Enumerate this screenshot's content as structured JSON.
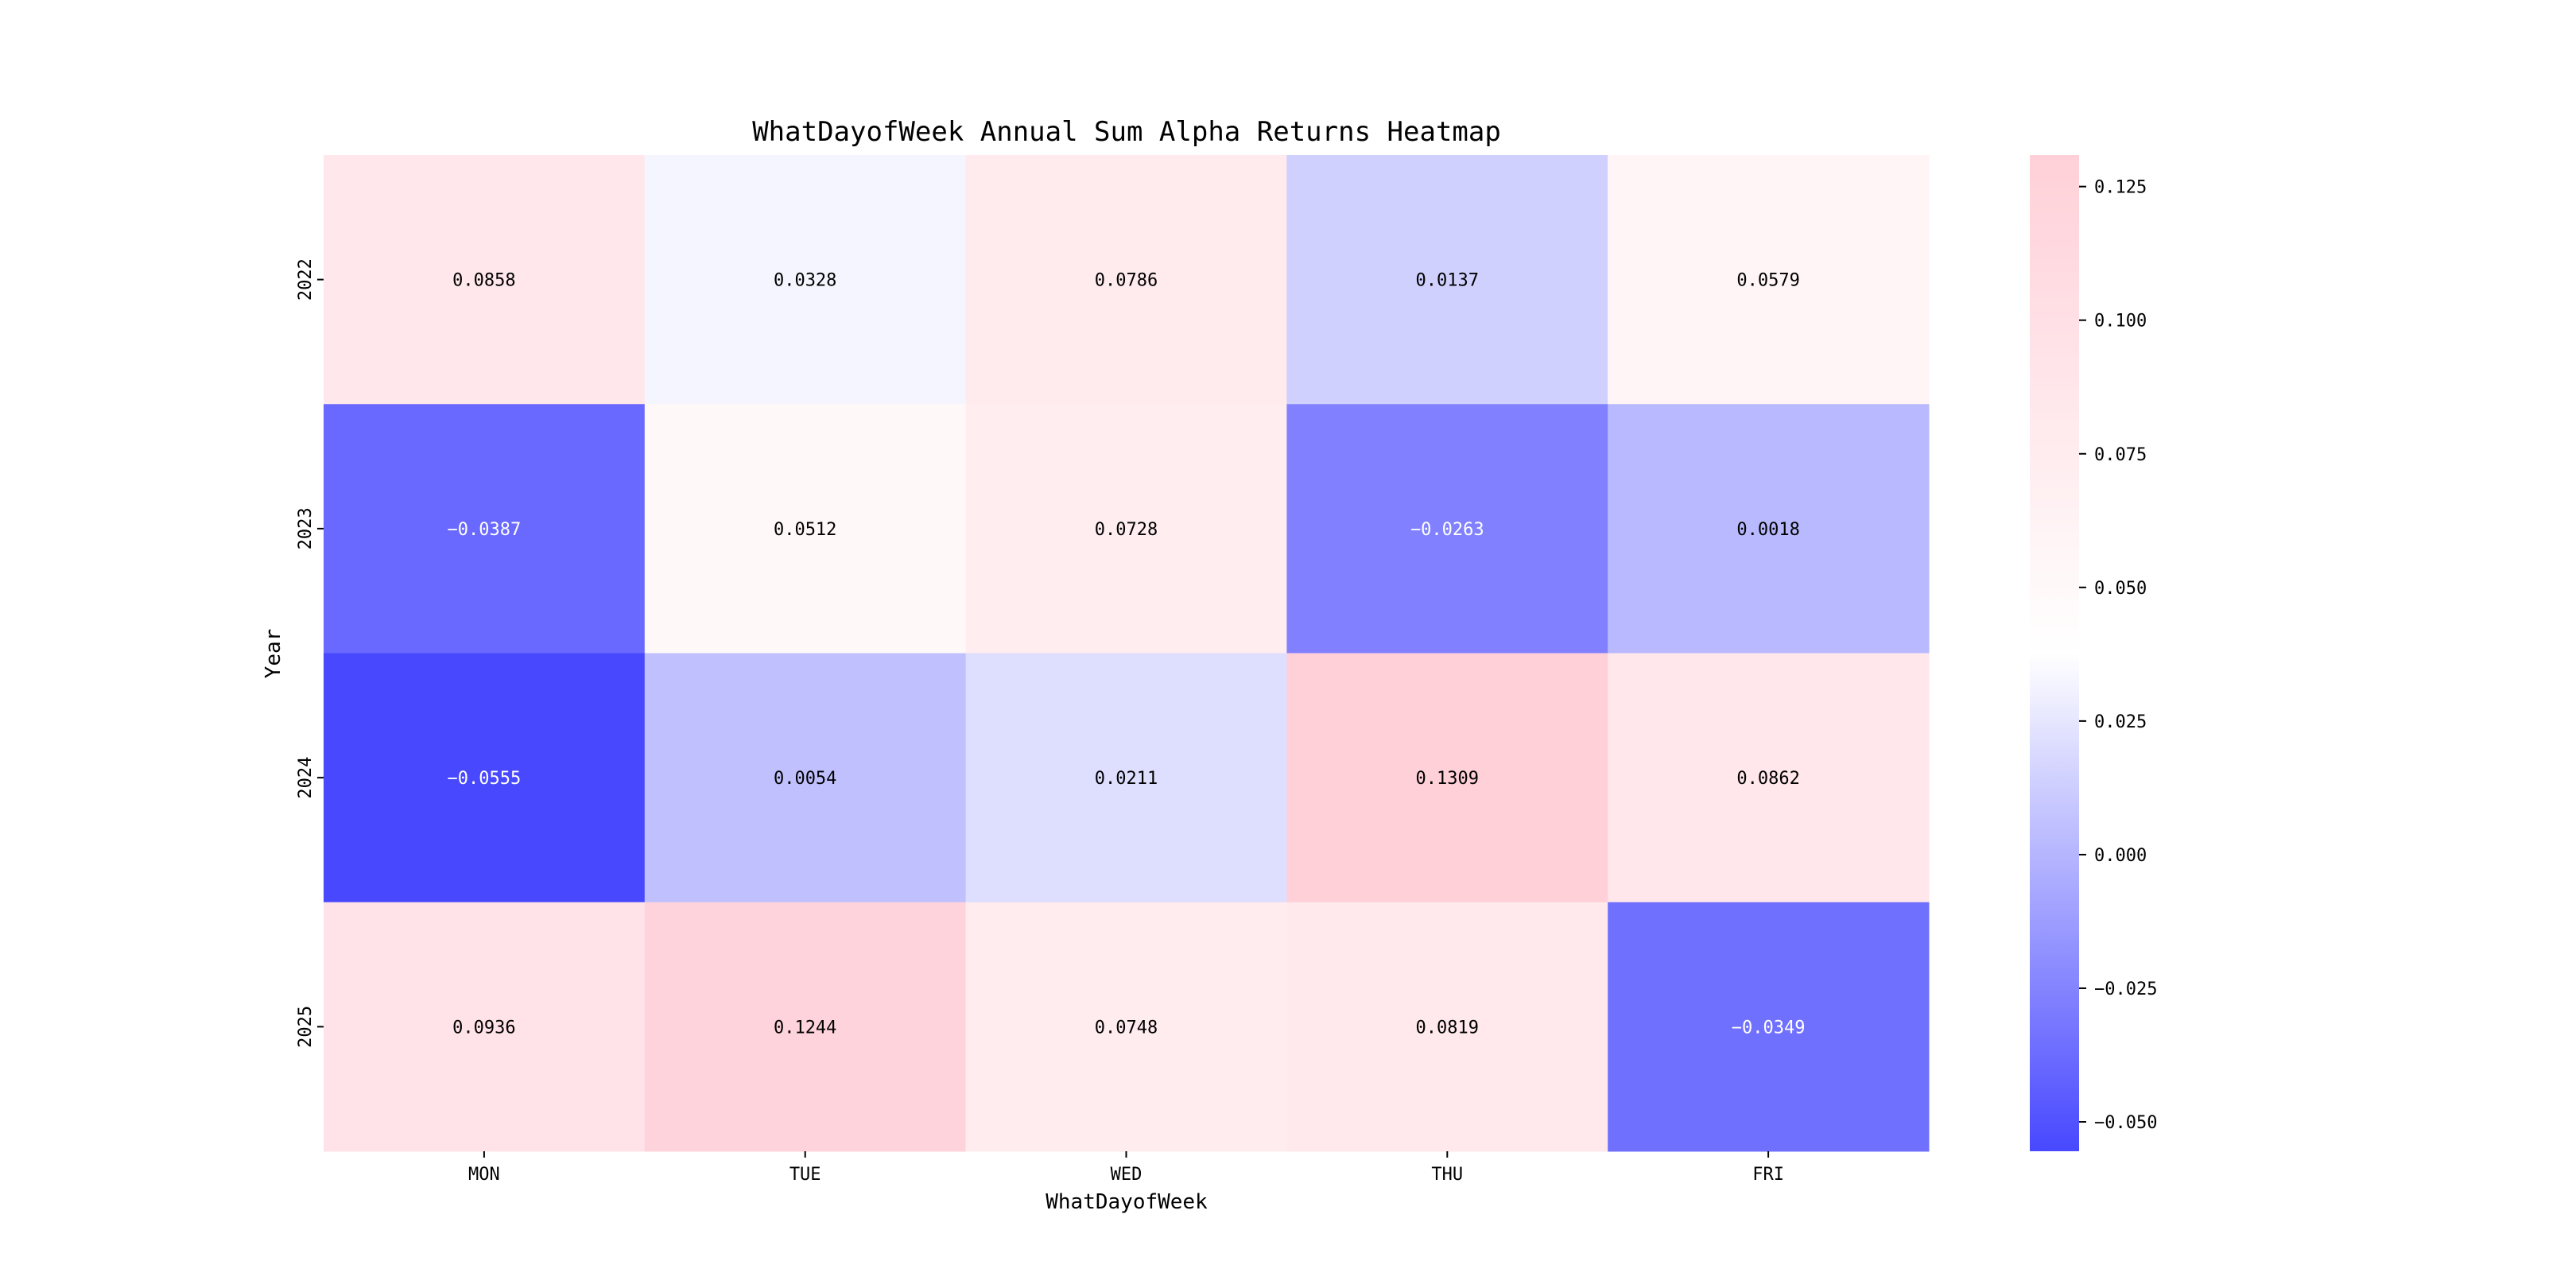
{
  "chart_data": {
    "type": "heatmap",
    "title": "WhatDayofWeek Annual Sum Alpha Returns Heatmap",
    "xlabel": "WhatDayofWeek",
    "ylabel": "Year",
    "x_categories": [
      "MON",
      "TUE",
      "WED",
      "THU",
      "FRI"
    ],
    "y_categories": [
      "2022",
      "2023",
      "2024",
      "2025"
    ],
    "values": [
      [
        0.0858,
        0.0328,
        0.0786,
        0.0137,
        0.0579
      ],
      [
        -0.0387,
        0.0512,
        0.0728,
        -0.0263,
        0.0018
      ],
      [
        -0.0555,
        0.0054,
        0.0211,
        0.1309,
        0.0862
      ],
      [
        0.0936,
        0.1244,
        0.0748,
        0.0819,
        -0.0349
      ]
    ],
    "colorbar": {
      "range": [
        -0.0555,
        0.1309
      ],
      "ticks": [
        0.125,
        0.1,
        0.075,
        0.05,
        0.025,
        0.0,
        -0.025,
        -0.05
      ],
      "tick_labels": [
        "0.125",
        "0.100",
        "0.075",
        "0.050",
        "0.025",
        "0.000",
        "−0.025",
        "−0.050"
      ]
    },
    "colors": {
      "low": "#4848ff",
      "mid": "#ffffff",
      "high": "#ffd0d8"
    }
  }
}
